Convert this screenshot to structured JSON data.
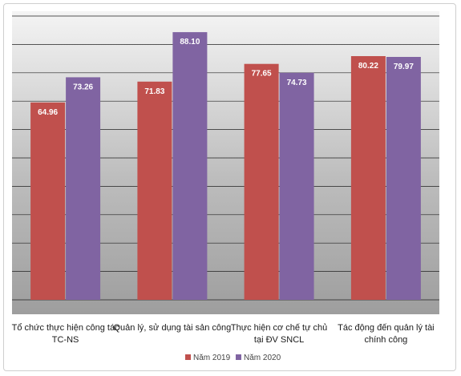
{
  "chart_data": {
    "type": "bar",
    "categories": [
      [
        "Tổ chức thực hiện công tác",
        "TC-NS"
      ],
      [
        "Quản lý, sử dụng tài sản công"
      ],
      [
        "Thực hiện cơ chế tự chủ",
        "tại ĐV SNCL"
      ],
      [
        "Tác động đến quản lý tài",
        "chính công"
      ]
    ],
    "series": [
      {
        "name": "Năm 2019",
        "color": "#c0504d",
        "values": [
          64.96,
          71.83,
          77.65,
          80.22
        ],
        "labels": [
          "64.96",
          "71.83",
          "77.65",
          "80.22"
        ]
      },
      {
        "name": "Năm 2020",
        "color": "#8064a2",
        "values": [
          73.26,
          88.1,
          74.73,
          79.97
        ],
        "labels": [
          "73.26",
          "88.10",
          "74.73",
          "79.97"
        ]
      }
    ],
    "ylim": [
      0,
      95
    ],
    "grid": true,
    "legend": "bottom"
  }
}
